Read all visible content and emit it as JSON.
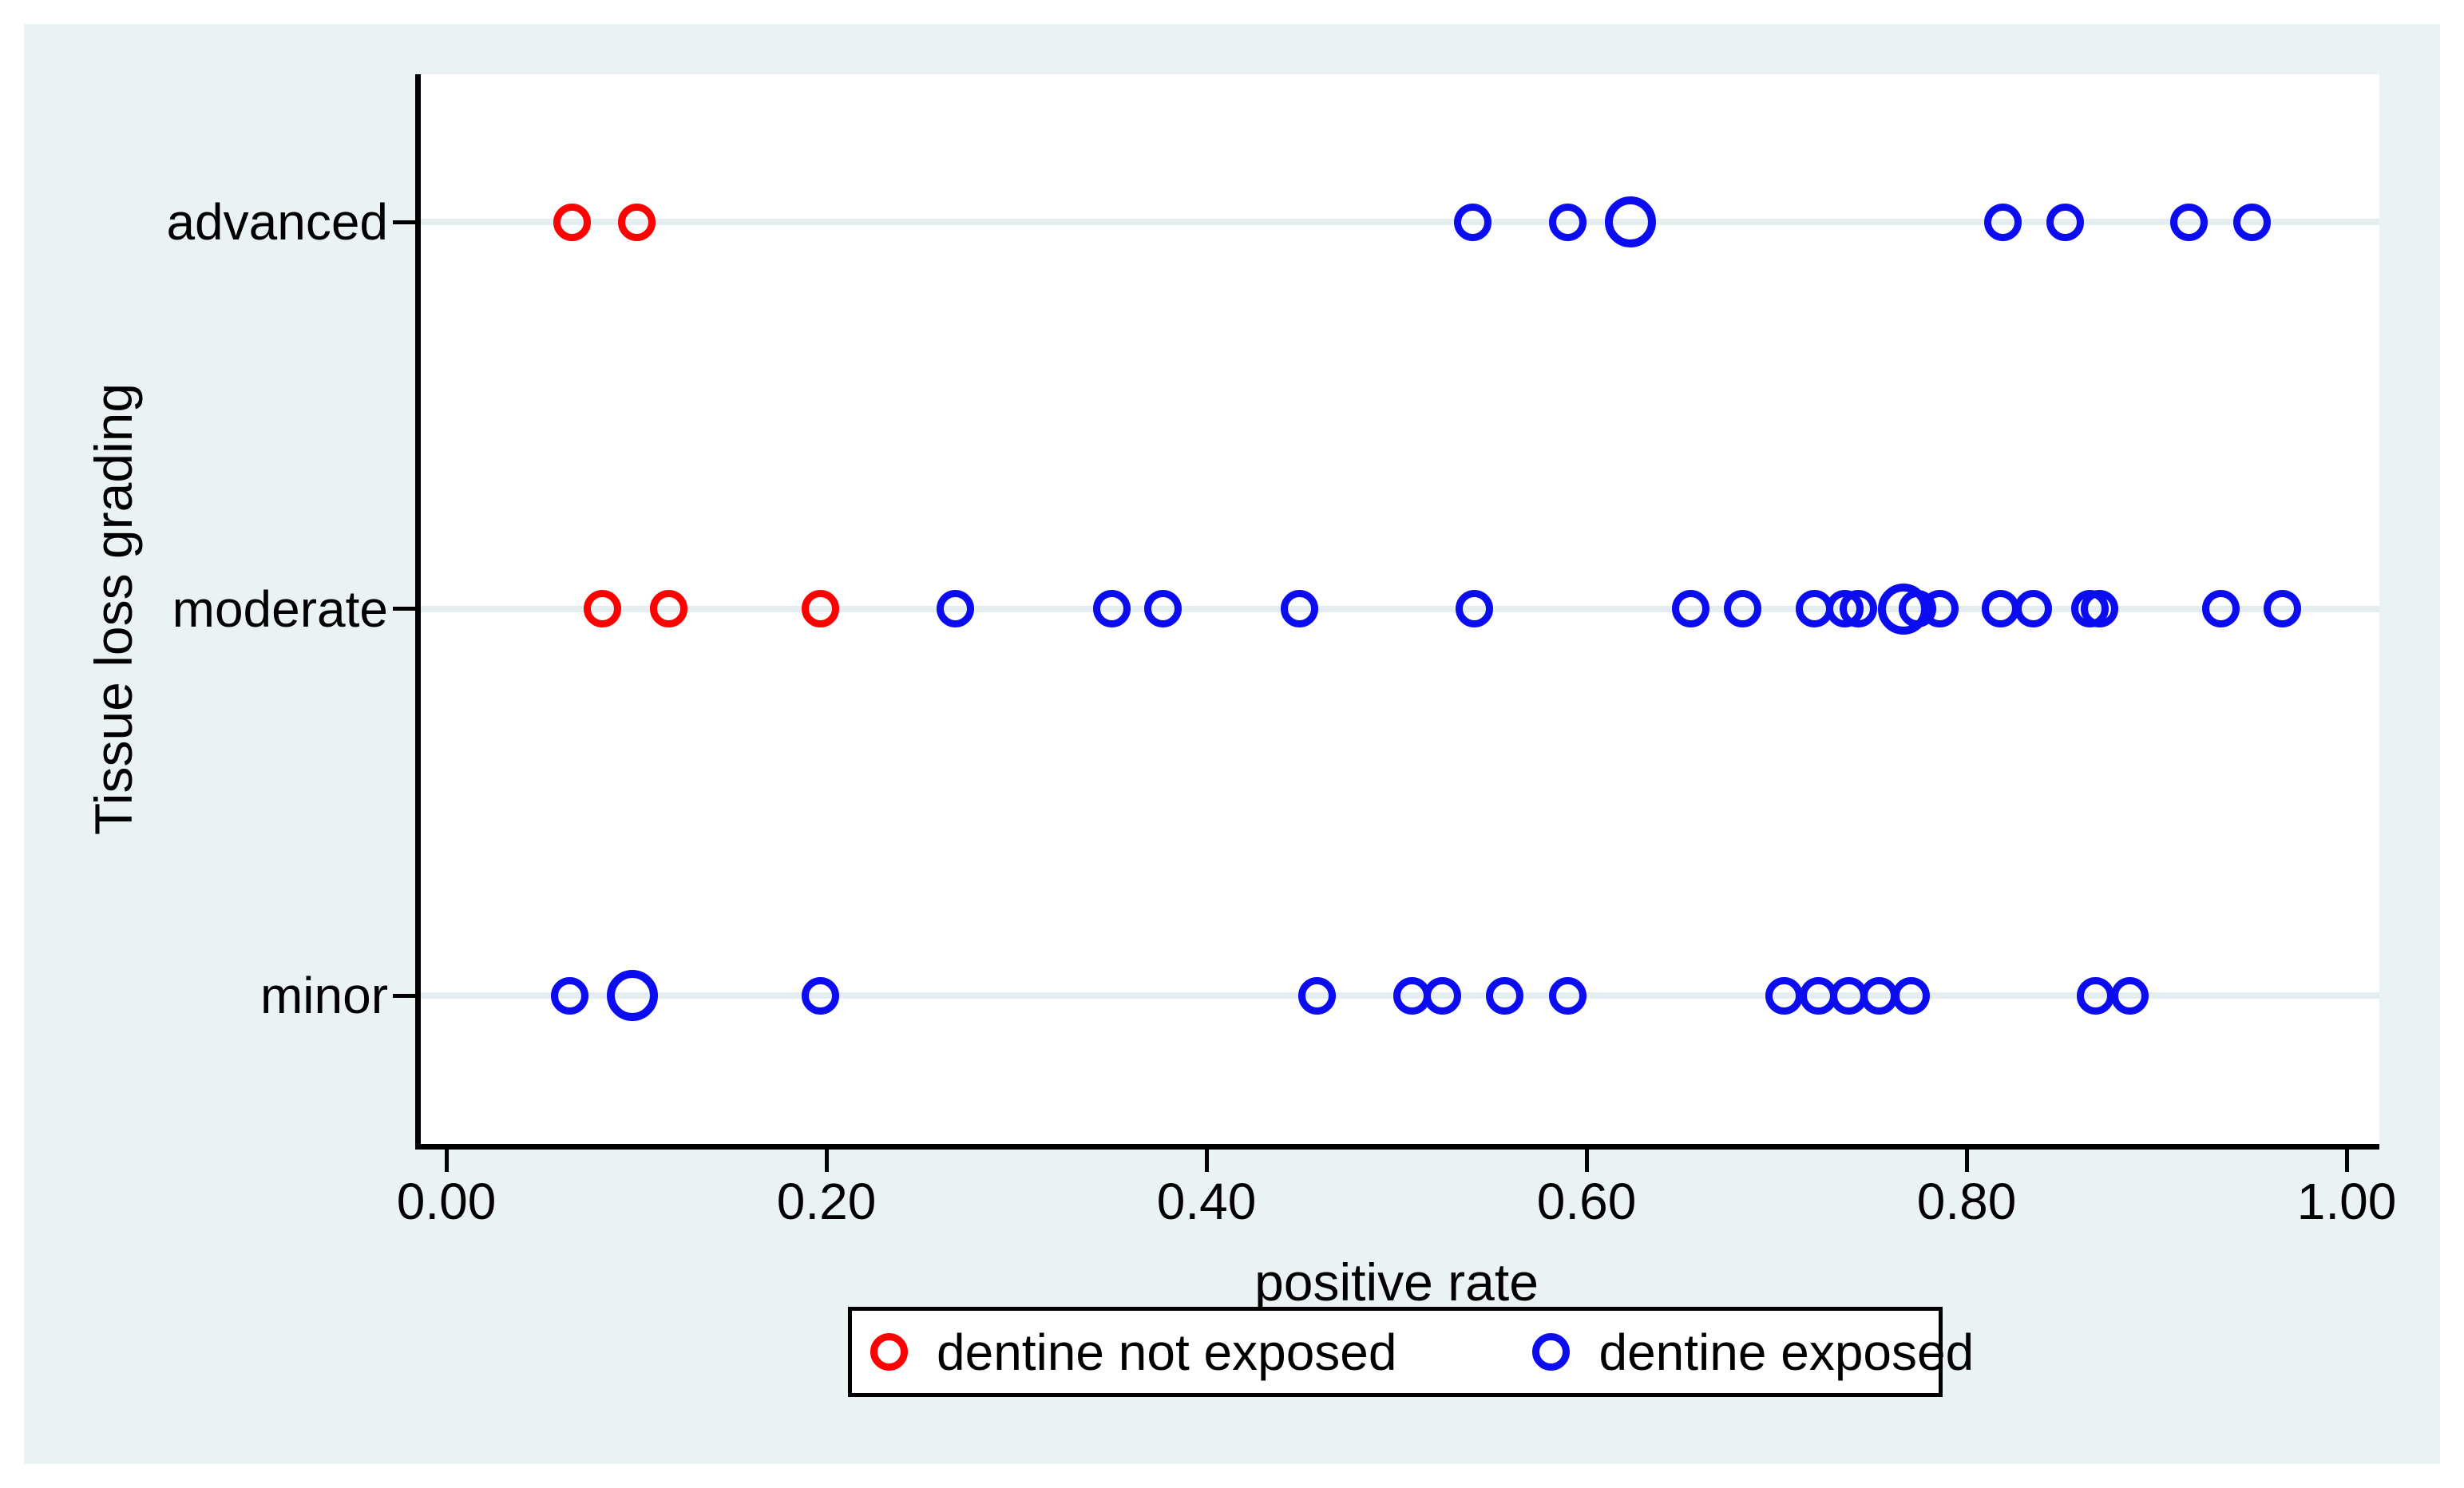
{
  "figure": {
    "background_color": "#eaf2f3",
    "plot_background_color": "#ffffff",
    "grid_color": "#e4edf0",
    "axis_color": "#000000"
  },
  "chart_data": {
    "type": "scatter",
    "title": "",
    "xlabel": "positive rate",
    "ylabel": "Tissue loss grading",
    "xlim": [
      0,
      1
    ],
    "x_ticks": [
      "0.00",
      "0.20",
      "0.40",
      "0.60",
      "0.80",
      "1.00"
    ],
    "x_tick_values": [
      0,
      0.2,
      0.4,
      0.6,
      0.8,
      1.0
    ],
    "categories": [
      "minor",
      "moderate",
      "advanced"
    ],
    "grid": true,
    "legend_position": "bottom",
    "marker_style": "hollow-circle",
    "series": [
      {
        "name": "dentine not exposed",
        "color": "#ff0000",
        "points": [
          {
            "category": "advanced",
            "x": 0.066
          },
          {
            "category": "advanced",
            "x": 0.1
          },
          {
            "category": "moderate",
            "x": 0.082
          },
          {
            "category": "moderate",
            "x": 0.117
          },
          {
            "category": "moderate",
            "x": 0.197
          }
        ]
      },
      {
        "name": "dentine exposed",
        "color": "#0c0cf0",
        "points": [
          {
            "category": "advanced",
            "x": 0.54
          },
          {
            "category": "advanced",
            "x": 0.59
          },
          {
            "category": "advanced",
            "x": 0.623,
            "size": "large"
          },
          {
            "category": "advanced",
            "x": 0.819
          },
          {
            "category": "advanced",
            "x": 0.852
          },
          {
            "category": "advanced",
            "x": 0.917
          },
          {
            "category": "advanced",
            "x": 0.95
          },
          {
            "category": "moderate",
            "x": 0.268
          },
          {
            "category": "moderate",
            "x": 0.35
          },
          {
            "category": "moderate",
            "x": 0.377
          },
          {
            "category": "moderate",
            "x": 0.449
          },
          {
            "category": "moderate",
            "x": 0.541
          },
          {
            "category": "moderate",
            "x": 0.655
          },
          {
            "category": "moderate",
            "x": 0.682
          },
          {
            "category": "moderate",
            "x": 0.72
          },
          {
            "category": "moderate",
            "x": 0.736
          },
          {
            "category": "moderate",
            "x": 0.743
          },
          {
            "category": "moderate",
            "x": 0.767,
            "size": "large"
          },
          {
            "category": "moderate",
            "x": 0.774
          },
          {
            "category": "moderate",
            "x": 0.786
          },
          {
            "category": "moderate",
            "x": 0.818
          },
          {
            "category": "moderate",
            "x": 0.835
          },
          {
            "category": "moderate",
            "x": 0.865
          },
          {
            "category": "moderate",
            "x": 0.87
          },
          {
            "category": "moderate",
            "x": 0.934
          },
          {
            "category": "moderate",
            "x": 0.966
          },
          {
            "category": "minor",
            "x": 0.065
          },
          {
            "category": "minor",
            "x": 0.098,
            "size": "large"
          },
          {
            "category": "minor",
            "x": 0.197
          },
          {
            "category": "minor",
            "x": 0.458
          },
          {
            "category": "minor",
            "x": 0.508
          },
          {
            "category": "minor",
            "x": 0.524
          },
          {
            "category": "minor",
            "x": 0.557
          },
          {
            "category": "minor",
            "x": 0.59
          },
          {
            "category": "minor",
            "x": 0.704
          },
          {
            "category": "minor",
            "x": 0.722
          },
          {
            "category": "minor",
            "x": 0.738
          },
          {
            "category": "minor",
            "x": 0.754
          },
          {
            "category": "minor",
            "x": 0.771
          },
          {
            "category": "minor",
            "x": 0.868
          },
          {
            "category": "minor",
            "x": 0.886
          }
        ]
      }
    ]
  }
}
